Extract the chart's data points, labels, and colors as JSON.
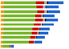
{
  "bars": [
    {
      "orange": 4.5,
      "green": 42.0,
      "red": 10.5,
      "gray": 4.0,
      "black": 1.5,
      "blue": 20.0
    },
    {
      "orange": 4.3,
      "green": 43.0,
      "red": 8.5,
      "gray": 3.0,
      "black": 1.2,
      "blue": 16.0
    },
    {
      "orange": 4.5,
      "green": 43.5,
      "red": 9.0,
      "gray": 3.5,
      "black": 1.2,
      "blue": 16.5
    },
    {
      "orange": 4.2,
      "green": 41.0,
      "red": 8.0,
      "gray": 2.5,
      "black": 1.0,
      "blue": 14.5
    },
    {
      "orange": 4.0,
      "green": 41.5,
      "red": 9.5,
      "gray": 3.0,
      "black": 1.5,
      "blue": 15.5
    },
    {
      "orange": 3.8,
      "green": 39.5,
      "red": 9.0,
      "gray": 2.0,
      "black": 1.2,
      "blue": 14.0
    },
    {
      "orange": 3.6,
      "green": 38.0,
      "red": 8.0,
      "gray": 1.5,
      "black": 1.0,
      "blue": 12.5
    },
    {
      "orange": 3.5,
      "green": 37.0,
      "red": 7.5,
      "gray": 1.8,
      "black": 1.0,
      "blue": 11.5
    },
    {
      "orange": 3.4,
      "green": 35.5,
      "red": 6.5,
      "gray": 1.2,
      "black": 0.8,
      "blue": 10.5
    },
    {
      "orange": 3.3,
      "green": 34.0,
      "red": 6.0,
      "gray": 0.8,
      "black": 0.6,
      "blue": 9.5
    },
    {
      "orange": 3.2,
      "green": 9.0,
      "red": 1.0,
      "gray": 0.3,
      "black": 0.3,
      "blue": 3.5
    }
  ],
  "colors": {
    "orange": "#E8A020",
    "green": "#77B72A",
    "red": "#CC1100",
    "gray": "#AAAAAA",
    "black": "#222222",
    "blue": "#2266CC"
  },
  "n_bars": 11,
  "background_color": "#ffffff"
}
